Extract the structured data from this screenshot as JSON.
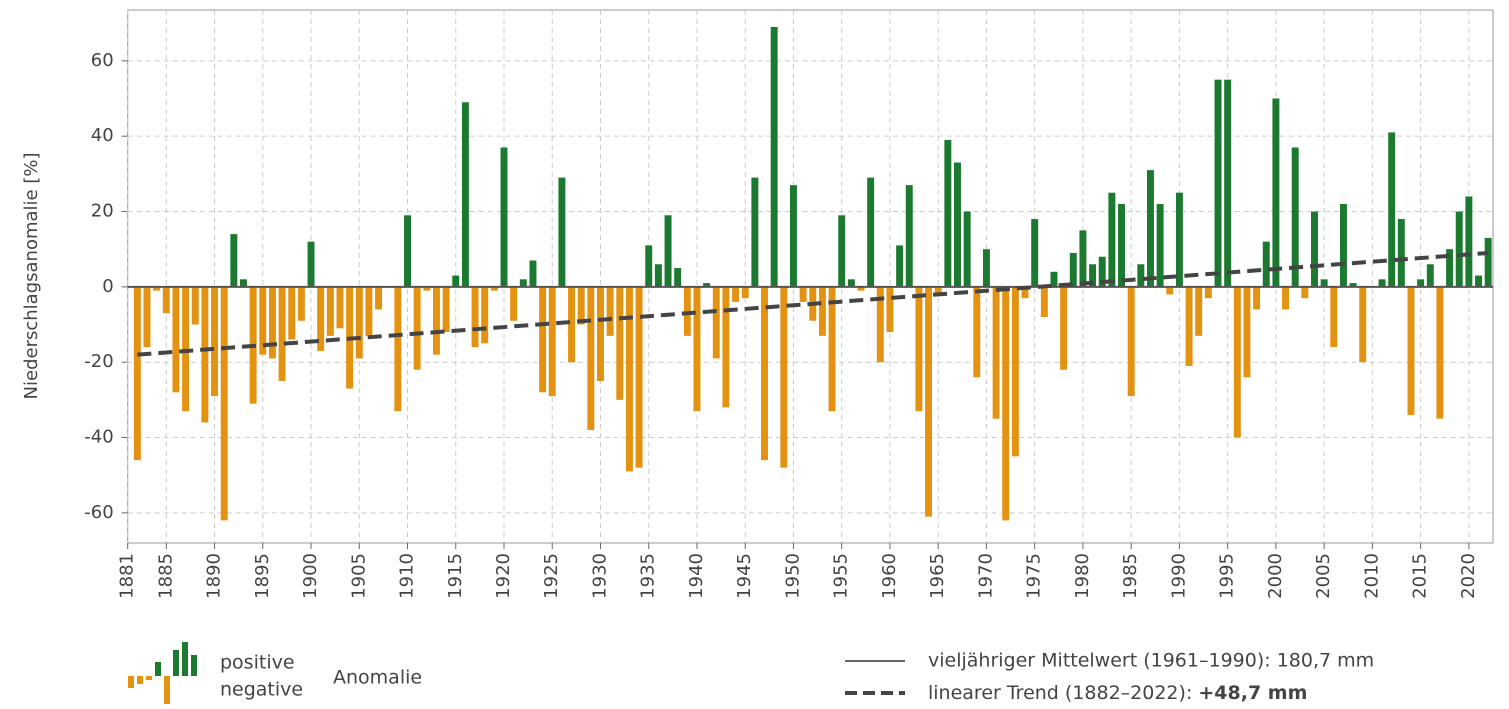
{
  "chart_data": {
    "type": "bar",
    "y_label": "Niederschlagsanomalie [%]",
    "x": [
      1882,
      1883,
      1884,
      1885,
      1886,
      1887,
      1888,
      1889,
      1890,
      1891,
      1892,
      1893,
      1894,
      1895,
      1896,
      1897,
      1898,
      1899,
      1900,
      1901,
      1902,
      1903,
      1904,
      1905,
      1906,
      1907,
      1908,
      1909,
      1910,
      1911,
      1912,
      1913,
      1914,
      1915,
      1916,
      1917,
      1918,
      1919,
      1920,
      1921,
      1922,
      1923,
      1924,
      1925,
      1926,
      1927,
      1928,
      1929,
      1930,
      1931,
      1932,
      1933,
      1934,
      1935,
      1936,
      1937,
      1938,
      1939,
      1940,
      1941,
      1942,
      1943,
      1944,
      1945,
      1946,
      1947,
      1948,
      1949,
      1950,
      1951,
      1952,
      1953,
      1954,
      1955,
      1956,
      1957,
      1958,
      1959,
      1960,
      1961,
      1962,
      1963,
      1964,
      1965,
      1966,
      1967,
      1968,
      1969,
      1970,
      1971,
      1972,
      1973,
      1974,
      1975,
      1976,
      1977,
      1978,
      1979,
      1980,
      1981,
      1982,
      1983,
      1984,
      1985,
      1986,
      1987,
      1988,
      1989,
      1990,
      1991,
      1992,
      1993,
      1994,
      1995,
      1996,
      1997,
      1998,
      1999,
      2000,
      2001,
      2002,
      2003,
      2004,
      2005,
      2006,
      2007,
      2008,
      2009,
      2010,
      2011,
      2012,
      2013,
      2014,
      2015,
      2016,
      2017,
      2018,
      2019,
      2020,
      2021,
      2022
    ],
    "values": [
      -46,
      -16,
      -1,
      -7,
      -28,
      -33,
      -10,
      -36,
      -29,
      -62,
      14,
      2,
      -31,
      -18,
      -19,
      -25,
      -14,
      -9,
      12,
      -17,
      -13,
      -11,
      -27,
      -19,
      -13,
      -6,
      0,
      -33,
      19,
      -22,
      -1,
      -18,
      -12,
      3,
      49,
      -16,
      -15,
      -1,
      37,
      -9,
      2,
      7,
      -28,
      -29,
      29,
      -20,
      -10,
      -38,
      -25,
      -13,
      -30,
      -49,
      -48,
      11,
      6,
      19,
      5,
      -13,
      -33,
      1,
      -19,
      -32,
      -4,
      -3,
      29,
      -46,
      69,
      -48,
      27,
      -4,
      -9,
      -13,
      -33,
      19,
      2,
      -1,
      29,
      -20,
      -12,
      11,
      27,
      -33,
      -61,
      -2,
      39,
      33,
      20,
      -24,
      10,
      -35,
      -62,
      -45,
      -3,
      18,
      -8,
      4,
      -22,
      9,
      15,
      6,
      8,
      25,
      22,
      -29,
      6,
      31,
      22,
      -2,
      25,
      -21,
      -13,
      -3,
      55,
      55,
      -40,
      -24,
      -6,
      12,
      50,
      -6,
      37,
      -3,
      20,
      2,
      -16,
      22,
      1,
      -20,
      0,
      2,
      41,
      18,
      -34,
      2,
      6,
      -35,
      10,
      20,
      24,
      3,
      13
    ],
    "positive_color": "#1b7a2f",
    "negative_color": "#e39211",
    "xlim": [
      1881,
      2022.5
    ],
    "xticks": [
      1881,
      1885,
      1890,
      1895,
      1900,
      1905,
      1910,
      1915,
      1920,
      1925,
      1930,
      1935,
      1940,
      1945,
      1950,
      1955,
      1960,
      1965,
      1970,
      1975,
      1980,
      1985,
      1990,
      1995,
      2000,
      2005,
      2010,
      2015,
      2020
    ],
    "ylim": [
      -68,
      73.5
    ],
    "yticks": [
      -60,
      -40,
      -20,
      0,
      20,
      40,
      60
    ],
    "grid": true,
    "mean_line": {
      "value": 0,
      "label": "vieljähriger Mittelwert (1961–1990): 180,7 mm"
    },
    "trend": {
      "x": [
        1882,
        2022
      ],
      "values": [
        -18,
        9
      ],
      "label": "linearer Trend (1882–2022): ",
      "change": "+48,7 mm"
    },
    "legend": {
      "positive": "positive",
      "negative": "negative",
      "title": "Anomalie"
    }
  }
}
